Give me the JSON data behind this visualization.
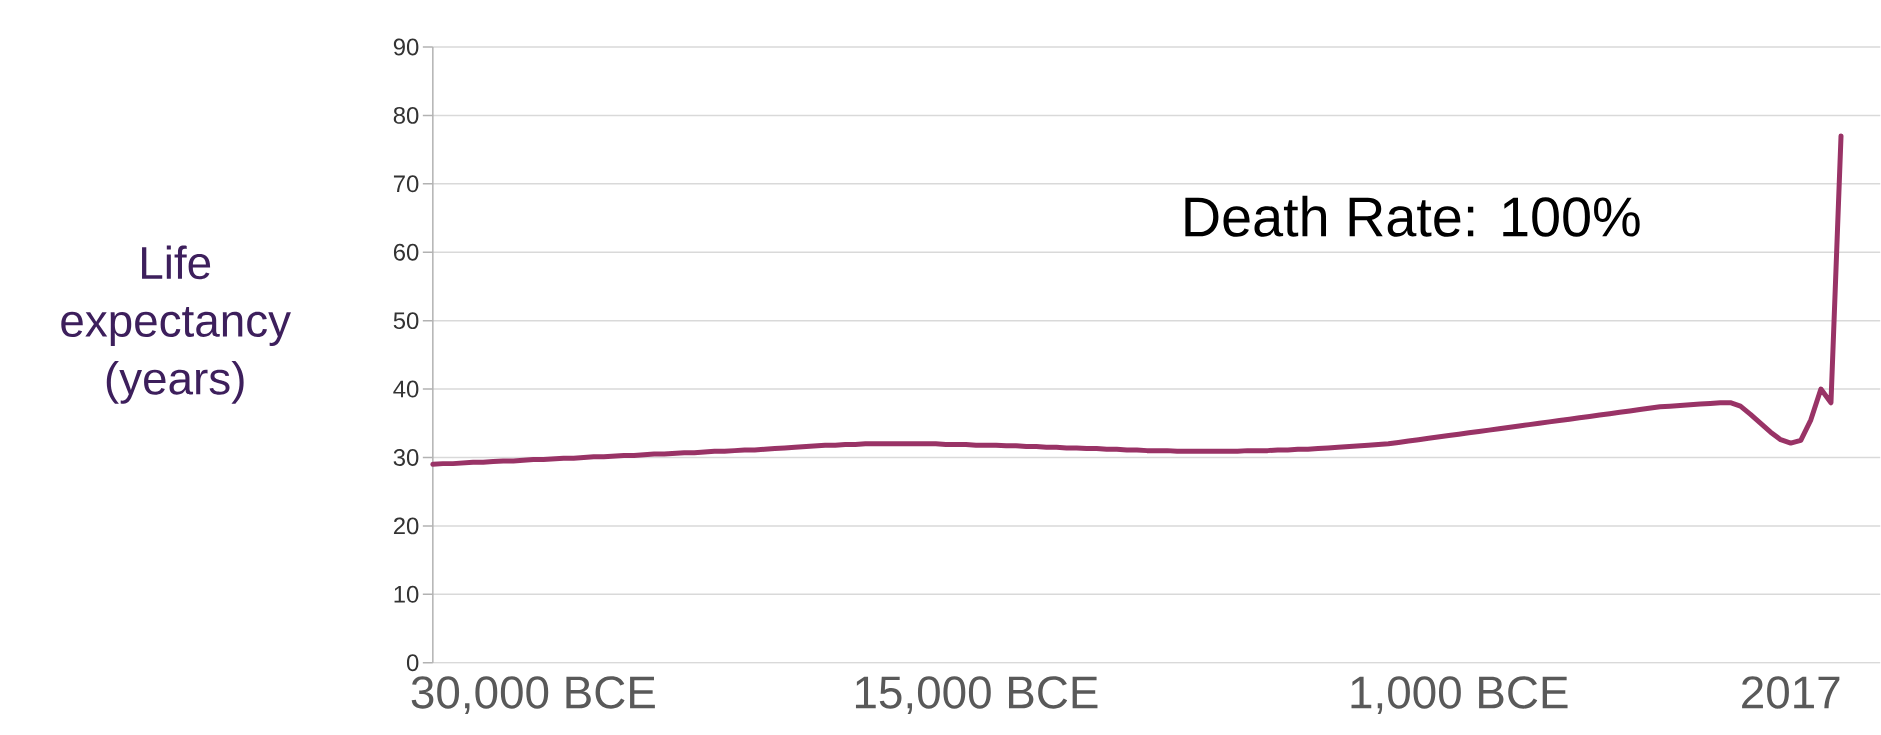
{
  "chart_data": {
    "type": "line",
    "ylabel": "Life expectancy (years)",
    "categories": [
      null,
      null,
      null,
      null,
      null,
      null,
      null,
      null,
      null,
      null,
      "30,000 BCE",
      null,
      null,
      null,
      null,
      null,
      null,
      null,
      null,
      null,
      null,
      null,
      null,
      null,
      null,
      null,
      null,
      null,
      null,
      null,
      null,
      null,
      null,
      null,
      null,
      null,
      null,
      null,
      null,
      null,
      null,
      null,
      null,
      null,
      null,
      null,
      null,
      null,
      null,
      null,
      null,
      null,
      null,
      null,
      "15,000 BCE",
      null,
      null,
      null,
      null,
      null,
      null,
      null,
      null,
      null,
      null,
      null,
      null,
      null,
      null,
      null,
      null,
      null,
      null,
      null,
      null,
      null,
      null,
      null,
      null,
      null,
      null,
      null,
      null,
      null,
      null,
      null,
      null,
      null,
      null,
      null,
      null,
      null,
      null,
      null,
      null,
      null,
      null,
      null,
      null,
      null,
      null,
      null,
      "1,000 BCE",
      null,
      null,
      null,
      null,
      null,
      null,
      null,
      null,
      null,
      null,
      null,
      null,
      null,
      null,
      null,
      null,
      null,
      null,
      null,
      null,
      null,
      null,
      null,
      null,
      null,
      null,
      null,
      null,
      null,
      null,
      null,
      null,
      "2017",
      null,
      null,
      null,
      null,
      null
    ],
    "series": [
      {
        "color": "#993366",
        "values": [
          29.0,
          29.1,
          29.1,
          29.2,
          29.3,
          29.3,
          29.4,
          29.5,
          29.5,
          29.6,
          29.7,
          29.7,
          29.8,
          29.9,
          29.9,
          30.0,
          30.1,
          30.1,
          30.2,
          30.3,
          30.3,
          30.4,
          30.5,
          30.5,
          30.6,
          30.7,
          30.7,
          30.8,
          30.9,
          30.9,
          31.0,
          31.1,
          31.1,
          31.2,
          31.3,
          31.4,
          31.5,
          31.6,
          31.7,
          31.8,
          31.8,
          31.9,
          31.9,
          32.0,
          32.0,
          32.0,
          32.0,
          32.0,
          32.0,
          32.0,
          32.0,
          31.9,
          31.9,
          31.9,
          31.8,
          31.8,
          31.8,
          31.7,
          31.7,
          31.6,
          31.6,
          31.5,
          31.5,
          31.4,
          31.4,
          31.3,
          31.3,
          31.2,
          31.2,
          31.1,
          31.1,
          31.0,
          31.0,
          31.0,
          30.9,
          30.9,
          30.9,
          30.9,
          30.9,
          30.9,
          30.9,
          31.0,
          31.0,
          31.0,
          31.1,
          31.1,
          31.2,
          31.2,
          31.3,
          31.4,
          31.5,
          31.6,
          31.7,
          31.8,
          31.9,
          32.0,
          32.2,
          32.4,
          32.6,
          32.8,
          33.0,
          33.2,
          33.4,
          33.6,
          33.8,
          34.0,
          34.2,
          34.4,
          34.6,
          34.8,
          35.0,
          35.2,
          35.4,
          35.6,
          35.8,
          36.0,
          36.2,
          36.4,
          36.6,
          36.8,
          37.0,
          37.2,
          37.4,
          37.5,
          37.6,
          37.7,
          37.8,
          37.9,
          38.0,
          38.0,
          37.5,
          36.3,
          35.0,
          33.7,
          32.6,
          32.1,
          32.5,
          35.5,
          40.0,
          38.0,
          77.0
        ]
      }
    ],
    "ylim": [
      0,
      90
    ],
    "yticks": [
      0,
      10,
      20,
      30,
      40,
      50,
      60,
      70,
      80,
      90
    ],
    "grid": "y",
    "line_style": "solid",
    "annotations": [
      "Death Rate: 100%"
    ]
  }
}
